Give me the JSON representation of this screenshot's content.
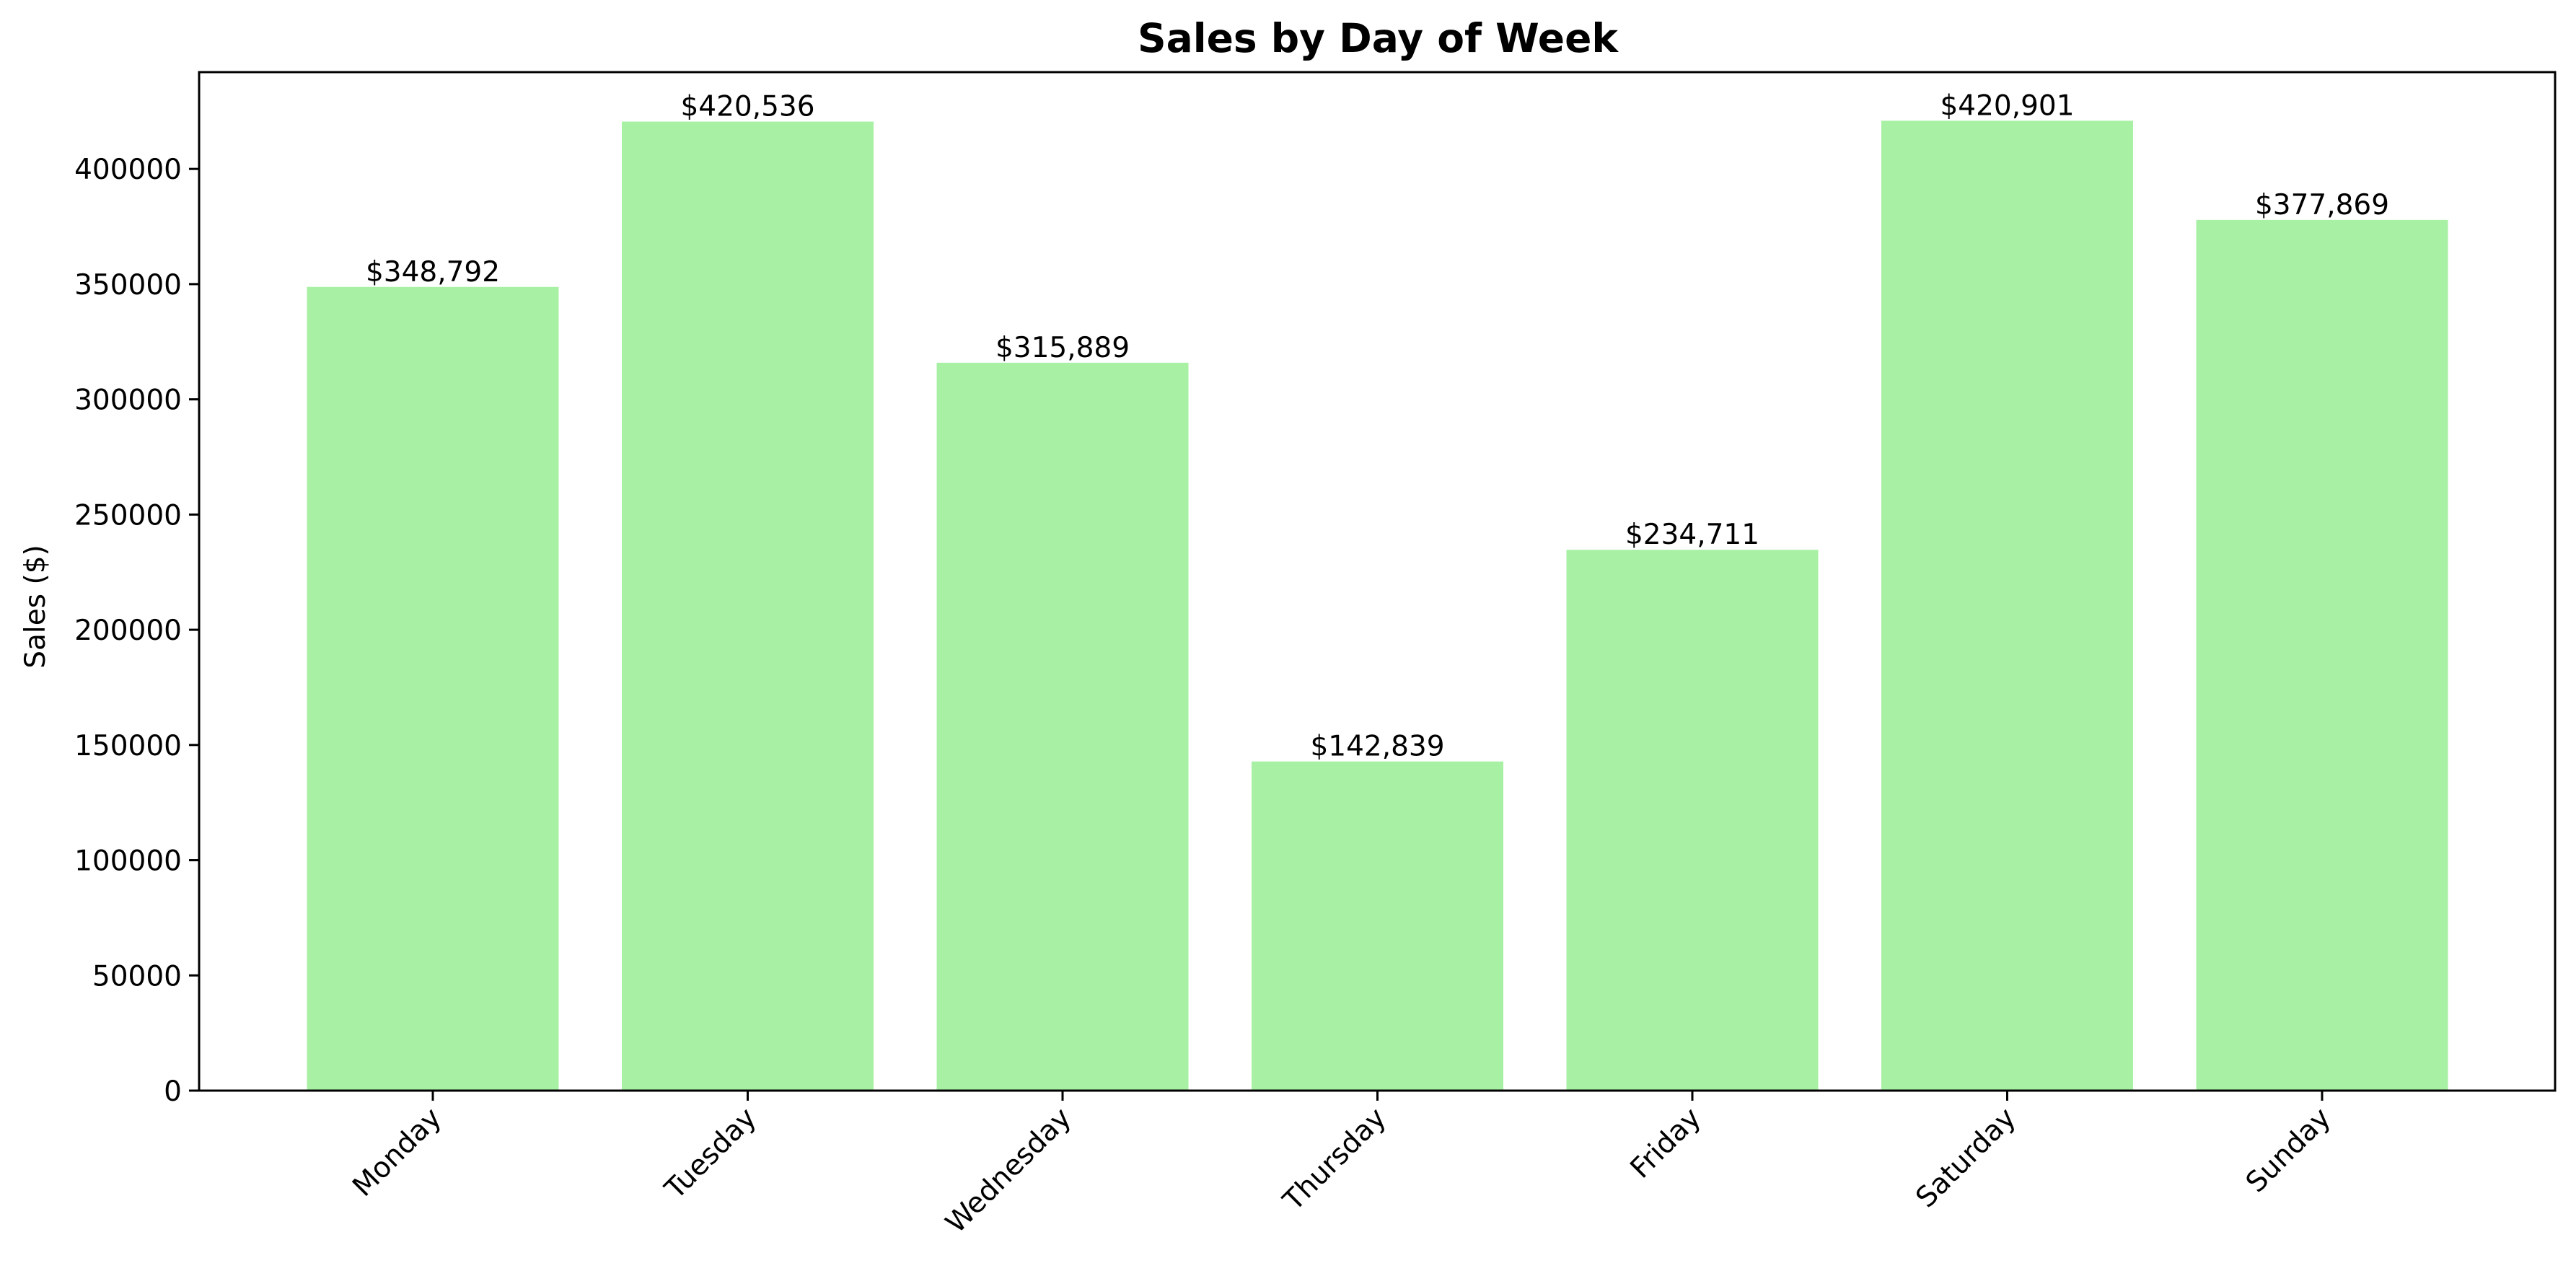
{
  "chart_data": {
    "type": "bar",
    "title": "Sales by Day of Week",
    "xlabel": "",
    "ylabel": "Sales ($)",
    "categories": [
      "Monday",
      "Tuesday",
      "Wednesday",
      "Thursday",
      "Friday",
      "Saturday",
      "Sunday"
    ],
    "values": [
      348792,
      420536,
      315889,
      142839,
      234711,
      420901,
      377869
    ],
    "data_labels": [
      "$348,792",
      "$420,536",
      "$315,889",
      "$142,839",
      "$234,711",
      "$420,901",
      "$377,869"
    ],
    "ylim": [
      0,
      442000
    ],
    "yticks": [
      0,
      50000,
      100000,
      150000,
      200000,
      250000,
      300000,
      350000,
      400000
    ],
    "ytick_labels": [
      "0",
      "50000",
      "100000",
      "150000",
      "200000",
      "250000",
      "300000",
      "350000",
      "400000"
    ],
    "bar_color": "#a8f0a4",
    "grid": false,
    "legend": "none"
  }
}
